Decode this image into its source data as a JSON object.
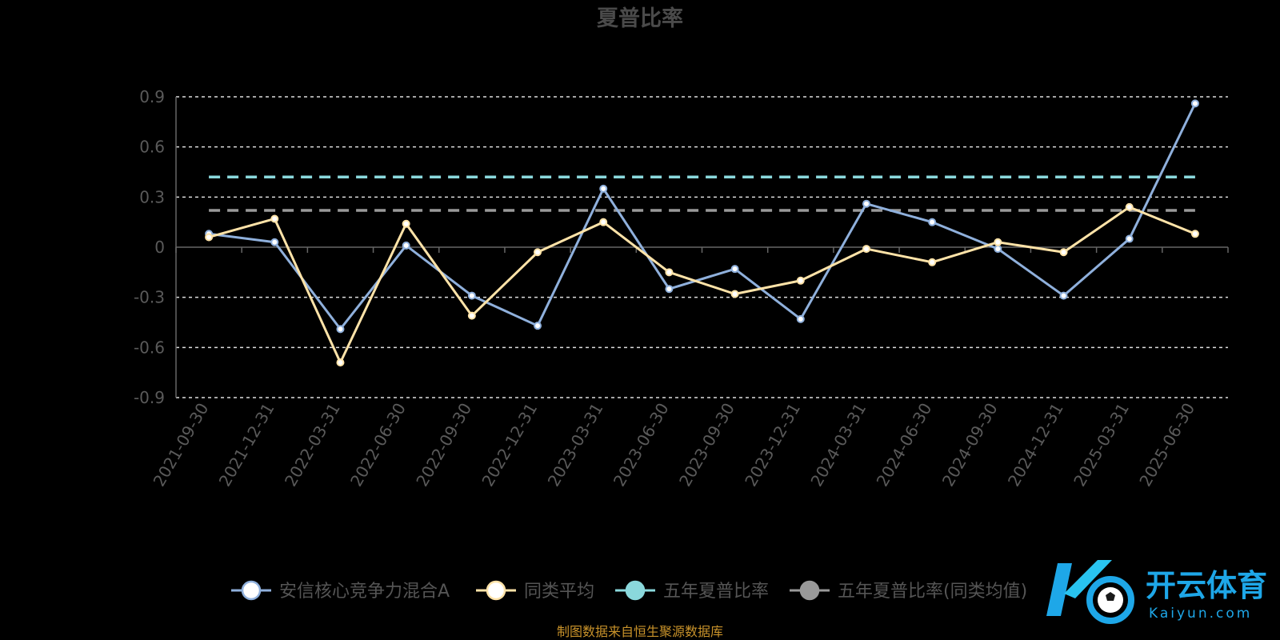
{
  "chart_data": {
    "type": "line",
    "title": "夏普比率",
    "xlabel": "",
    "ylabel": "",
    "ylim": [
      -0.9,
      0.9
    ],
    "yticks": [
      "0.9",
      "0.6",
      "0.3",
      "0",
      "-0.3",
      "-0.6",
      "-0.9"
    ],
    "ytick_values": [
      0.9,
      0.6,
      0.3,
      0,
      -0.3,
      -0.6,
      -0.9
    ],
    "categories": [
      "2021-09-30",
      "2021-12-31",
      "2022-03-31",
      "2022-06-30",
      "2022-09-30",
      "2022-12-31",
      "2023-03-31",
      "2023-06-30",
      "2023-09-30",
      "2023-12-31",
      "2024-03-31",
      "2024-06-30",
      "2024-09-30",
      "2024-12-31",
      "2025-03-31",
      "2025-06-30"
    ],
    "grid": true,
    "legend_placement": "bottom",
    "series": [
      {
        "name": "安信核心竞争力混合A",
        "color": "#8fb0dc",
        "marker_fill": "#ffffff",
        "style": "line",
        "values": [
          0.08,
          0.03,
          -0.49,
          0.01,
          -0.29,
          -0.47,
          0.35,
          -0.25,
          -0.13,
          -0.43,
          0.26,
          0.15,
          -0.01,
          -0.29,
          0.05,
          0.86
        ]
      },
      {
        "name": "同类平均",
        "color": "#ffe3a8",
        "marker_fill": "#ffffff",
        "style": "line",
        "values": [
          0.06,
          0.17,
          -0.69,
          0.14,
          -0.41,
          -0.03,
          0.15,
          -0.15,
          -0.28,
          -0.2,
          -0.01,
          -0.09,
          0.03,
          -0.03,
          0.24,
          0.08
        ]
      },
      {
        "name": "五年夏普比率",
        "color": "#8ad8dc",
        "style": "dashed",
        "value": 0.42
      },
      {
        "name": "五年夏普比率(同类均值)",
        "color": "#999999",
        "style": "dashed",
        "value": 0.22
      }
    ]
  },
  "footer": {
    "source": "制图数据来自恒生聚源数据库"
  },
  "watermark": {
    "text_cn": "开云体育",
    "text_en": "Kaiyun.com"
  }
}
